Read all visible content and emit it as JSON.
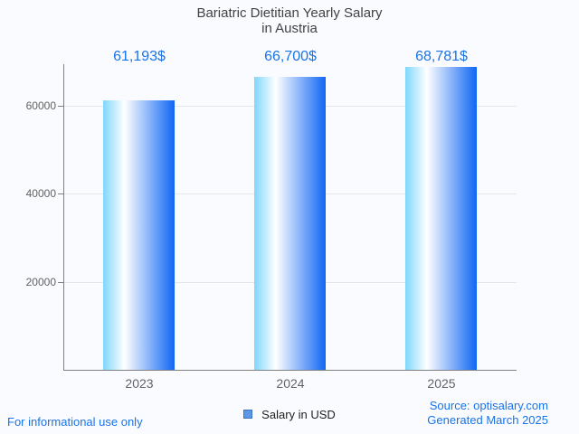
{
  "title": {
    "line1": "Bariatric Dietitian Yearly Salary",
    "line2": "in Austria"
  },
  "chart_data": {
    "type": "bar",
    "title": "Bariatric Dietitian Yearly Salary in Austria",
    "categories": [
      "2023",
      "2024",
      "2025"
    ],
    "series": [
      {
        "name": "Salary in USD",
        "values": [
          61193,
          66700,
          68781
        ]
      }
    ],
    "value_labels": [
      "61,193$",
      "66,700$",
      "68,781$"
    ],
    "xlabel": "",
    "ylabel": "",
    "yticks": [
      20000,
      40000,
      60000
    ],
    "ytick_labels": [
      "20000",
      "40000",
      "60000"
    ],
    "ylim": [
      0,
      69500
    ],
    "grid": true,
    "legend_position": "bottom"
  },
  "legend": {
    "items": [
      {
        "label": "Salary in USD",
        "swatch_color": "#5e97e8",
        "swatch_border": "#3d72c0"
      }
    ]
  },
  "footer": {
    "left": "For informational use only",
    "source_line1": "Source: optisalary.com",
    "source_line2": "Generated March 2025"
  },
  "colors": {
    "accent_blue": "#1a73e8",
    "bar_gradient_left": "#7ed7fc",
    "bar_gradient_mid": "#ffffff",
    "bar_gradient_right": "#0f66f4",
    "axis_line": "#808080",
    "gridline": "#e3e6ea",
    "tick_text": "#616161",
    "title_text": "#424242",
    "background": "#fafbfe"
  }
}
